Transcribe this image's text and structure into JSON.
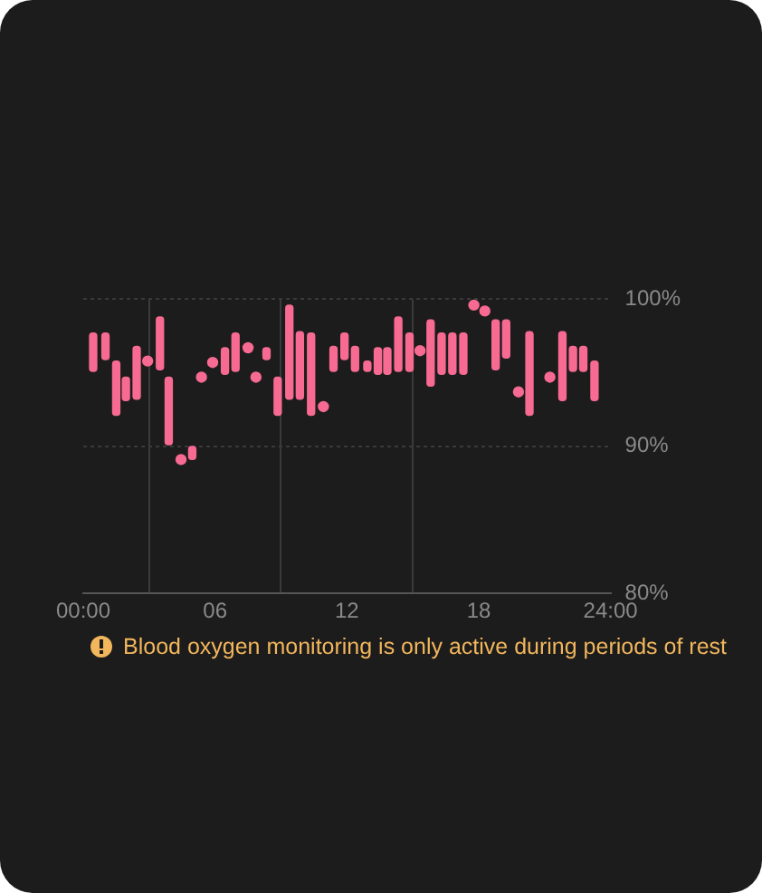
{
  "chart_data": {
    "type": "bar",
    "x": [
      0.45,
      1.01,
      1.5,
      1.94,
      2.43,
      3.49,
      3.89,
      4.96,
      6.45,
      6.93,
      8.34,
      8.85,
      9.38,
      9.86,
      10.37,
      11.39,
      11.89,
      12.37,
      12.93,
      13.41,
      13.84,
      14.34,
      14.85,
      15.81,
      16.31,
      16.8,
      17.3,
      18.77,
      19.25,
      20.31,
      21.81,
      22.29,
      22.76,
      23.27
    ],
    "series": [
      {
        "color": "#f76a92",
        "base": [
          95.1,
          95.9,
          92.1,
          93.1,
          93.2,
          95.2,
          90.1,
          89.1,
          94.9,
          95.1,
          95.9,
          92.1,
          93.2,
          93.2,
          92.1,
          95.1,
          95.9,
          95.1,
          95.1,
          94.9,
          94.9,
          95.1,
          95.1,
          94.1,
          94.9,
          94.9,
          94.9,
          95.2,
          96.0,
          92.1,
          93.1,
          95.1,
          95.1,
          93.1
        ],
        "values": [
          2.6,
          1.8,
          3.7,
          1.6,
          3.6,
          3.6,
          4.6,
          0.9,
          1.8,
          2.6,
          0.8,
          2.6,
          6.4,
          4.6,
          5.6,
          1.7,
          1.8,
          1.7,
          0.7,
          1.8,
          1.8,
          3.7,
          2.6,
          4.5,
          2.8,
          2.8,
          2.8,
          3.4,
          2.6,
          5.7,
          4.7,
          1.7,
          1.7,
          2.7
        ]
      },
      {
        "type": "scatter",
        "color": "#f76a92",
        "x": [
          2.93,
          4.45,
          5.38,
          5.89,
          7.5,
          7.86,
          10.93,
          15.33,
          17.78,
          18.28,
          19.81,
          21.24
        ],
        "values": [
          95.8,
          89.1,
          94.7,
          95.7,
          96.7,
          94.7,
          92.7,
          96.5,
          99.6,
          99.2,
          93.7,
          94.7
        ]
      }
    ],
    "xlim": [
      0,
      24
    ],
    "xticks": [
      {
        "value": 0,
        "label": "00:00"
      },
      {
        "value": 6,
        "label": "06"
      },
      {
        "value": 12,
        "label": "12"
      },
      {
        "value": 18,
        "label": "18"
      },
      {
        "value": 24,
        "label": "24:00"
      }
    ],
    "ylim": [
      80,
      100
    ],
    "yticks": [
      {
        "value": 80,
        "label": "80%"
      },
      {
        "value": 90,
        "label": "90%"
      },
      {
        "value": 100,
        "label": "100%"
      }
    ],
    "grid": true,
    "marker": "circle",
    "annotations": [
      "Blood oxygen monitoring is only active during periods of rest"
    ]
  }
}
